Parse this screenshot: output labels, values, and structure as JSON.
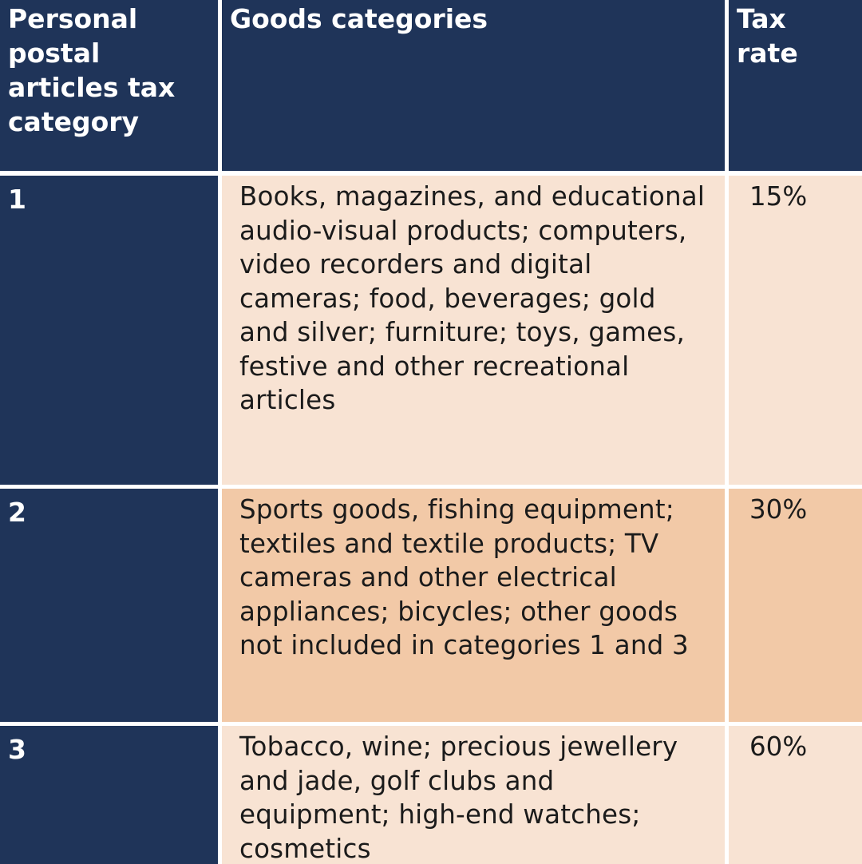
{
  "table": {
    "headers": [
      "Personal postal articles tax category",
      "Goods categories",
      "Tax rate"
    ],
    "rows": [
      {
        "category": "1",
        "goods": "Books, magazines, and educational audio-visual products; computers, video recorders and digital cameras; food, beverages; gold and silver; furniture; toys, games, festive and other recreational articles",
        "rate": "15%"
      },
      {
        "category": "2",
        "goods": "Sports goods, fishing equipment; textiles and textile products; TV cameras and other electrical appliances; bicycles; other goods not included in categories 1 and 3",
        "rate": "30%"
      },
      {
        "category": "3",
        "goods": "Tobacco, wine; precious jewellery and jade, golf clubs and equipment; high-end watches; cosmetics",
        "rate": "60%"
      }
    ]
  },
  "colors": {
    "header_bg": "#1f3459",
    "row_light": "#f8e3d3",
    "row_dark": "#f2c9a7",
    "border": "#ffffff"
  }
}
